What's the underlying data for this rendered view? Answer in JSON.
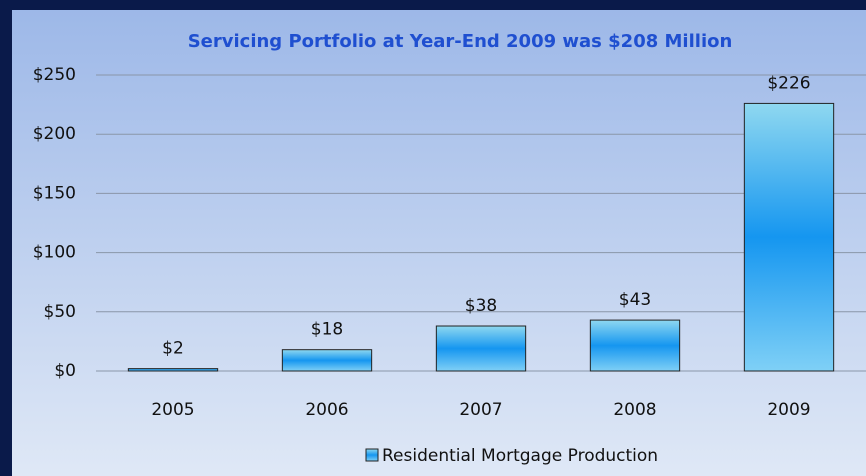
{
  "chart_data": {
    "type": "bar",
    "title": "Servicing Portfolio at Year-End 2009 was $208 Million",
    "categories": [
      "2005",
      "2006",
      "2007",
      "2008",
      "2009"
    ],
    "series": [
      {
        "name": "Residential Mortgage Production",
        "color": "#1e9af0",
        "values": [
          2,
          18,
          38,
          43,
          226
        ],
        "value_labels": [
          "$2",
          "$18",
          "$38",
          "$43",
          "$226"
        ]
      }
    ],
    "ylim": [
      0,
      250
    ],
    "yticks": [
      {
        "value": 0,
        "label": "$0"
      },
      {
        "value": 50,
        "label": "$50"
      },
      {
        "value": 100,
        "label": "$100"
      },
      {
        "value": 150,
        "label": "$150"
      },
      {
        "value": 200,
        "label": "$200"
      },
      {
        "value": 250,
        "label": "$250"
      }
    ],
    "grid": true,
    "legend": "bottom"
  }
}
